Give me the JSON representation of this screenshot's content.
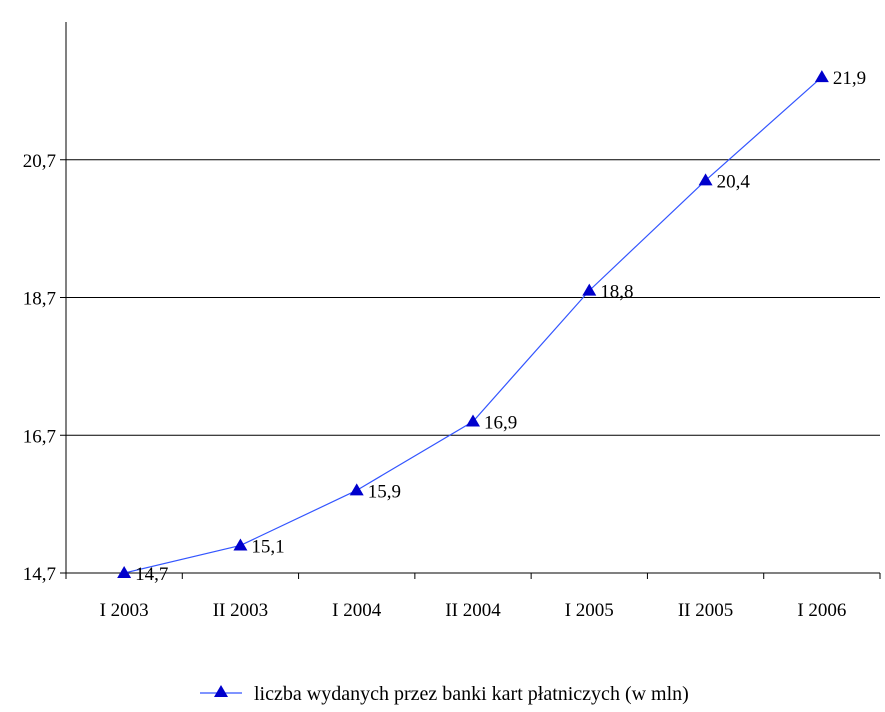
{
  "chart_data": {
    "type": "line",
    "categories": [
      "I 2003",
      "II 2003",
      "I 2004",
      "II 2004",
      "I 2005",
      "II 2005",
      "I 2006"
    ],
    "series": [
      {
        "name": "liczba wydanych przez banki kart płatniczych (w mln)",
        "values": [
          14.7,
          15.1,
          15.9,
          16.9,
          18.8,
          20.4,
          21.9
        ],
        "data_labels": [
          "14,7",
          "15,1",
          "15,9",
          "16,9",
          "18,8",
          "20,4",
          "21,9"
        ],
        "color": "#3355ff",
        "marker_color": "#0000cc",
        "marker": "triangle"
      }
    ],
    "y_ticks": [
      14.7,
      16.7,
      18.7,
      20.7
    ],
    "y_tick_labels": [
      "14,7",
      "16,7",
      "18,7",
      "20,7"
    ],
    "ylim": [
      14.7,
      22.7
    ],
    "grid": true,
    "legend_position": "bottom",
    "title": "",
    "xlabel": "",
    "ylabel": ""
  }
}
